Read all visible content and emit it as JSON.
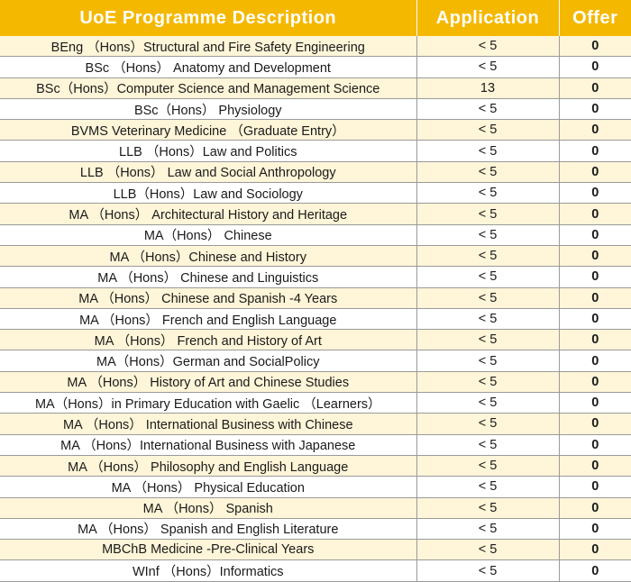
{
  "table": {
    "headers": {
      "programme": "UoE Programme Description",
      "application": "Application",
      "offer": "Offer"
    },
    "rows": [
      {
        "programme": "BEng （Hons）Structural and Fire Safety Engineering",
        "application": "< 5",
        "offer": "0"
      },
      {
        "programme": "BSc （Hons） Anatomy and Development",
        "application": "< 5",
        "offer": "0"
      },
      {
        "programme": "BSc（Hons）Computer Science and Management Science",
        "application": "13",
        "offer": "0"
      },
      {
        "programme": "BSc（Hons） Physiology",
        "application": "< 5",
        "offer": "0"
      },
      {
        "programme": "BVMS Veterinary Medicine （Graduate Entry）",
        "application": "< 5",
        "offer": "0"
      },
      {
        "programme": "LLB （Hons）Law and Politics",
        "application": "< 5",
        "offer": "0"
      },
      {
        "programme": "LLB （Hons） Law and Social Anthropology",
        "application": "< 5",
        "offer": "0"
      },
      {
        "programme": "LLB（Hons）Law and Sociology",
        "application": "< 5",
        "offer": "0"
      },
      {
        "programme": "MA （Hons） Architectural History and Heritage",
        "application": "< 5",
        "offer": "0"
      },
      {
        "programme": "MA（Hons） Chinese",
        "application": "< 5",
        "offer": "0"
      },
      {
        "programme": "MA （Hons）Chinese and History",
        "application": "< 5",
        "offer": "0"
      },
      {
        "programme": "MA （Hons） Chinese and Linguistics",
        "application": "< 5",
        "offer": "0"
      },
      {
        "programme": "MA （Hons） Chinese and Spanish -4 Years",
        "application": "< 5",
        "offer": "0"
      },
      {
        "programme": "MA （Hons） French and English Language",
        "application": "< 5",
        "offer": "0"
      },
      {
        "programme": "MA （Hons） French and History of Art",
        "application": "< 5",
        "offer": "0"
      },
      {
        "programme": "MA（Hons）German and SocialPolicy",
        "application": "< 5",
        "offer": "0"
      },
      {
        "programme": "MA （Hons） History of Art and Chinese Studies",
        "application": "< 5",
        "offer": "0"
      },
      {
        "programme": "MA（Hons）in Primary Education with Gaelic （Learners）",
        "application": "< 5",
        "offer": "0"
      },
      {
        "programme": "MA （Hons） International Business with Chinese",
        "application": "< 5",
        "offer": "0"
      },
      {
        "programme": "MA （Hons）International Business with Japanese",
        "application": "< 5",
        "offer": "0"
      },
      {
        "programme": "MA （Hons） Philosophy and English Language",
        "application": "< 5",
        "offer": "0"
      },
      {
        "programme": "MA （Hons） Physical Education",
        "application": "< 5",
        "offer": "0"
      },
      {
        "programme": "MA （Hons） Spanish",
        "application": "< 5",
        "offer": "0"
      },
      {
        "programme": "MA （Hons） Spanish and English Literature",
        "application": "< 5",
        "offer": "0"
      },
      {
        "programme": "MBChB Medicine -Pre-Clinical Years",
        "application": "< 5",
        "offer": "0"
      },
      {
        "programme": "WInf （Hons）Informatics",
        "application": "< 5",
        "offer": "0"
      }
    ]
  }
}
